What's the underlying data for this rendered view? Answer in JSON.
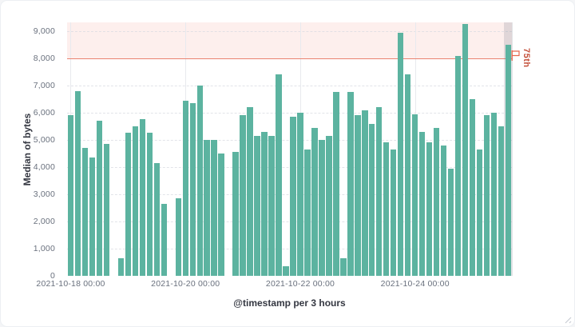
{
  "panel": {
    "type": "kibana-visualization-panel"
  },
  "chart": {
    "y_axis": {
      "title": "Median of bytes",
      "ticks": [
        {
          "value": 0,
          "label": "0"
        },
        {
          "value": 1000,
          "label": "1,000"
        },
        {
          "value": 2000,
          "label": "2,000"
        },
        {
          "value": 3000,
          "label": "3,000"
        },
        {
          "value": 4000,
          "label": "4,000"
        },
        {
          "value": 5000,
          "label": "5,000"
        },
        {
          "value": 6000,
          "label": "6,000"
        },
        {
          "value": 7000,
          "label": "7,000"
        },
        {
          "value": 8000,
          "label": "8,000"
        },
        {
          "value": 9000,
          "label": "9,000"
        }
      ]
    },
    "x_axis": {
      "title": "@timestamp per 3 hours",
      "ticks": [
        {
          "slot": 0,
          "label": "2021-10-18 00:00"
        },
        {
          "slot": 16,
          "label": "2021-10-20 00:00"
        },
        {
          "slot": 32,
          "label": "2021-10-22 00:00"
        },
        {
          "slot": 48,
          "label": "2021-10-24 00:00"
        }
      ]
    },
    "threshold": {
      "value": 8000,
      "label": "75th",
      "line_color": "#ea8370",
      "label_color": "#c4513b",
      "shade_color": "rgba(231,102,76,0.10)"
    },
    "colors": {
      "bar": "#5cb3a0",
      "tick_text": "#69707d",
      "axis_title_text": "#343741",
      "highlight_band": "rgba(122,128,140,0.22)"
    }
  },
  "chart_data": {
    "type": "bar",
    "title": "",
    "xlabel": "@timestamp per 3 hours",
    "ylabel": "Median of bytes",
    "x_start": "2021-10-18 00:00",
    "x_interval": "3 hours",
    "ylim": [
      0,
      9320
    ],
    "grid": true,
    "highlighted_slot": 61,
    "values": [
      5900,
      6800,
      4700,
      4350,
      5700,
      4850,
      null,
      650,
      5250,
      5500,
      5750,
      5250,
      4150,
      2650,
      null,
      2850,
      6450,
      6350,
      7000,
      5000,
      5000,
      4500,
      null,
      4550,
      5900,
      6200,
      5150,
      5300,
      5150,
      7400,
      350,
      5850,
      6000,
      4650,
      5450,
      5000,
      5150,
      6750,
      650,
      6750,
      5900,
      6100,
      5600,
      6200,
      4900,
      4650,
      8950,
      7400,
      5950,
      5300,
      4900,
      5450,
      4800,
      3950,
      8100,
      9250,
      6500,
      4650,
      5900,
      6000,
      5500,
      8500
    ],
    "threshold_line": {
      "value": 8000,
      "label": "75th"
    }
  }
}
